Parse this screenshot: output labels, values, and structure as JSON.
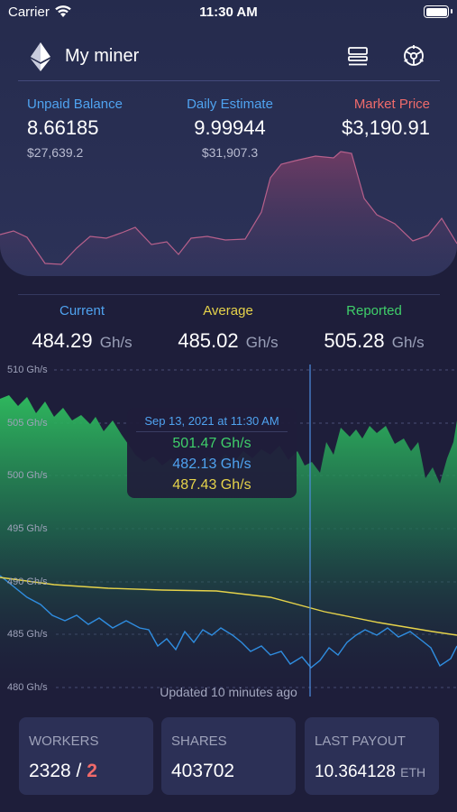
{
  "status_bar": {
    "carrier": "Carrier",
    "time": "11:30 AM"
  },
  "header": {
    "title": "My miner"
  },
  "balances": {
    "unpaid": {
      "label": "Unpaid Balance",
      "value": "8.66185",
      "sub": "$27,639.2"
    },
    "daily": {
      "label": "Daily Estimate",
      "value": "9.99944",
      "sub": "$31,907.3"
    },
    "market": {
      "label": "Market Price",
      "value": "$3,190.91"
    }
  },
  "hashrate": {
    "current": {
      "label": "Current",
      "value": "484.29",
      "unit": "Gh/s"
    },
    "average": {
      "label": "Average",
      "value": "485.02",
      "unit": "Gh/s"
    },
    "reported": {
      "label": "Reported",
      "value": "505.28",
      "unit": "Gh/s"
    }
  },
  "chart_axis": {
    "ticks": [
      "510 Gh/s",
      "505 Gh/s",
      "500 Gh/s",
      "495 Gh/s",
      "490 Gh/s",
      "485 Gh/s",
      "480 Gh/s"
    ]
  },
  "tooltip": {
    "date": "Sep 13, 2021 at 11:30 AM",
    "reported": "501.47 Gh/s",
    "current": "482.13 Gh/s",
    "average": "487.43 Gh/s"
  },
  "updated_text": "Updated 10 minutes ago",
  "cards": {
    "workers": {
      "label": "WORKERS",
      "online": "2328",
      "separator": " / ",
      "offline": "2"
    },
    "shares": {
      "label": "SHARES",
      "value": "403702"
    },
    "payout": {
      "label": "LAST PAYOUT",
      "value": "10.364128",
      "unit": "ETH"
    }
  },
  "colors": {
    "unpaid": "#4fa3f0",
    "daily": "#4fa3f0",
    "market": "#ef6b6b",
    "current": "#4fa3f0",
    "average": "#e6d34a",
    "reported": "#3fcf6a",
    "error": "#f06a6a"
  }
}
